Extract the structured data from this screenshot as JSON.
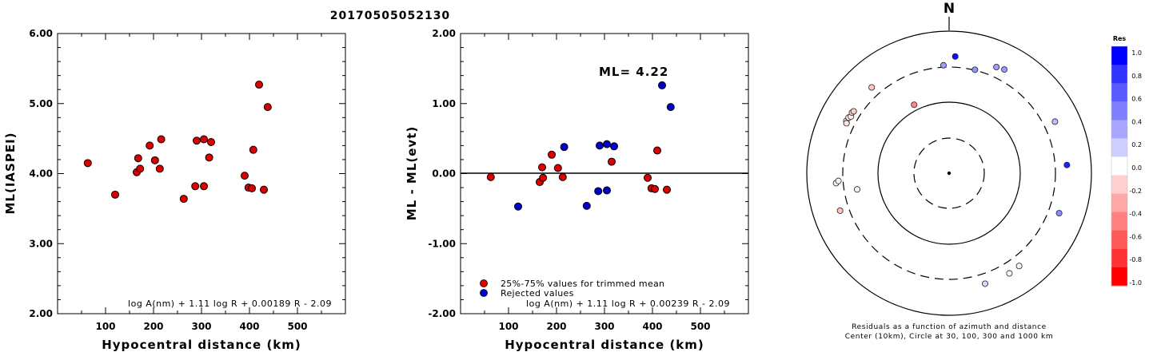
{
  "title": "20170505052130",
  "chart_data": [
    {
      "type": "scatter",
      "xlabel": "Hypocentral distance (km)",
      "ylabel": "ML(IASPEI)",
      "xlim": [
        0,
        600
      ],
      "ylim": [
        2.0,
        6.0
      ],
      "xticks": [
        "100",
        "200",
        "300",
        "400",
        "500"
      ],
      "yticks": [
        "2.00",
        "3.00",
        "4.00",
        "5.00",
        "6.00"
      ],
      "formula": "log A(nm) + 1.11 log R + 0.00189 R - 2.09",
      "series": [
        {
          "color": "#dd0000",
          "points": [
            [
              63,
              4.15
            ],
            [
              120,
              3.7
            ],
            [
              165,
              4.02
            ],
            [
              168,
              4.22
            ],
            [
              172,
              4.07
            ],
            [
              192,
              4.4
            ],
            [
              203,
              4.19
            ],
            [
              213,
              4.07
            ],
            [
              216,
              4.49
            ],
            [
              263,
              3.64
            ],
            [
              287,
              3.82
            ],
            [
              290,
              4.47
            ],
            [
              305,
              3.82
            ],
            [
              305,
              4.49
            ],
            [
              316,
              4.23
            ],
            [
              320,
              4.45
            ],
            [
              390,
              3.97
            ],
            [
              398,
              3.8
            ],
            [
              405,
              3.79
            ],
            [
              408,
              4.34
            ],
            [
              420,
              5.27
            ],
            [
              430,
              3.77
            ],
            [
              438,
              4.95
            ]
          ]
        }
      ]
    },
    {
      "type": "scatter",
      "xlabel": "Hypocentral distance (km)",
      "ylabel": "ML - ML(evt)",
      "xlim": [
        0,
        600
      ],
      "ylim": [
        -2.0,
        2.0
      ],
      "xticks": [
        "100",
        "200",
        "300",
        "400",
        "500"
      ],
      "yticks": [
        "-2.00",
        "-1.00",
        "0.00",
        "1.00",
        "2.00"
      ],
      "annotation": "ML= 4.22",
      "formula": "log A(nm) + 1.11 log R + 0.00239 R - 2.09",
      "legend": [
        {
          "label": "25%-75% values for trimmed mean",
          "color": "#dd0000"
        },
        {
          "label": "Rejected values",
          "color": "#0000cc"
        }
      ],
      "series": [
        {
          "name": "25%-75% values for trimmed mean",
          "color": "#dd0000",
          "points": [
            [
              63,
              -0.05
            ],
            [
              165,
              -0.12
            ],
            [
              170,
              0.09
            ],
            [
              172,
              -0.06
            ],
            [
              190,
              0.27
            ],
            [
              203,
              0.08
            ],
            [
              213,
              -0.05
            ],
            [
              315,
              0.17
            ],
            [
              390,
              -0.06
            ],
            [
              398,
              -0.21
            ],
            [
              405,
              -0.22
            ],
            [
              410,
              0.33
            ],
            [
              430,
              -0.23
            ]
          ]
        },
        {
          "name": "Rejected values",
          "color": "#0000cc",
          "points": [
            [
              120,
              -0.47
            ],
            [
              216,
              0.38
            ],
            [
              263,
              -0.46
            ],
            [
              287,
              -0.25
            ],
            [
              290,
              0.4
            ],
            [
              305,
              -0.24
            ],
            [
              305,
              0.42
            ],
            [
              320,
              0.39
            ],
            [
              420,
              1.26
            ],
            [
              438,
              0.95
            ]
          ]
        }
      ]
    },
    {
      "type": "polar-scatter",
      "north_label": "N",
      "caption_line1": "Residuals as a function of azimuth and distance",
      "caption_line2": "Center (10km), Circle at 30, 100, 300 and 1000 km",
      "rings_km": [
        10,
        30,
        100,
        300,
        1000
      ],
      "colorbar_title": "Res",
      "colorbar_ticks": [
        "1.0",
        "0.8",
        "0.6",
        "0.4",
        "0.2",
        "0.0",
        "-0.2",
        "-0.4",
        "-0.6",
        "-0.8",
        "-1.0"
      ],
      "colorbar_colors": [
        "#0000ff",
        "#3333ff",
        "#5a5aff",
        "#8080ff",
        "#a6a6ff",
        "#cfcfff",
        "#ffffff",
        "#ffcfcf",
        "#ffa6a6",
        "#ff8080",
        "#ff5a5a",
        "#ff3333",
        "#ff0000"
      ],
      "stations": [
        {
          "azimuth_deg": 3,
          "distance_km": 430,
          "residual": 0.95
        },
        {
          "azimuth_deg": 357,
          "distance_km": 320,
          "residual": 0.39
        },
        {
          "azimuth_deg": 14,
          "distance_km": 305,
          "residual": 0.42
        },
        {
          "azimuth_deg": 24,
          "distance_km": 420,
          "residual": 0.38
        },
        {
          "azimuth_deg": 28,
          "distance_km": 438,
          "residual": 0.4
        },
        {
          "azimuth_deg": 318,
          "distance_km": 410,
          "residual": -0.22
        },
        {
          "azimuth_deg": 333,
          "distance_km": 120,
          "residual": -0.47
        },
        {
          "azimuth_deg": 297,
          "distance_km": 405,
          "residual": -0.12
        },
        {
          "azimuth_deg": 296,
          "distance_km": 390,
          "residual": -0.1
        },
        {
          "azimuth_deg": 299,
          "distance_km": 400,
          "residual": -0.05
        },
        {
          "azimuth_deg": 300,
          "distance_km": 380,
          "residual": -0.08
        },
        {
          "azimuth_deg": 302,
          "distance_km": 395,
          "residual": -0.15
        },
        {
          "azimuth_deg": 303,
          "distance_km": 385,
          "residual": -0.2
        },
        {
          "azimuth_deg": 265,
          "distance_km": 380,
          "residual": 0.02
        },
        {
          "azimuth_deg": 266,
          "distance_km": 350,
          "residual": -0.05
        },
        {
          "azimuth_deg": 251,
          "distance_km": 405,
          "residual": -0.25
        },
        {
          "azimuth_deg": 260,
          "distance_km": 200,
          "residual": -0.06
        },
        {
          "azimuth_deg": 64,
          "distance_km": 440,
          "residual": 0.26
        },
        {
          "azimuth_deg": 86,
          "distance_km": 445,
          "residual": 0.88
        },
        {
          "azimuth_deg": 110,
          "distance_km": 430,
          "residual": 0.46
        },
        {
          "azimuth_deg": 143,
          "distance_km": 420,
          "residual": 0.05
        },
        {
          "azimuth_deg": 149,
          "distance_km": 430,
          "residual": -0.04
        },
        {
          "azimuth_deg": 162,
          "distance_km": 420,
          "residual": 0.17
        }
      ]
    }
  ]
}
